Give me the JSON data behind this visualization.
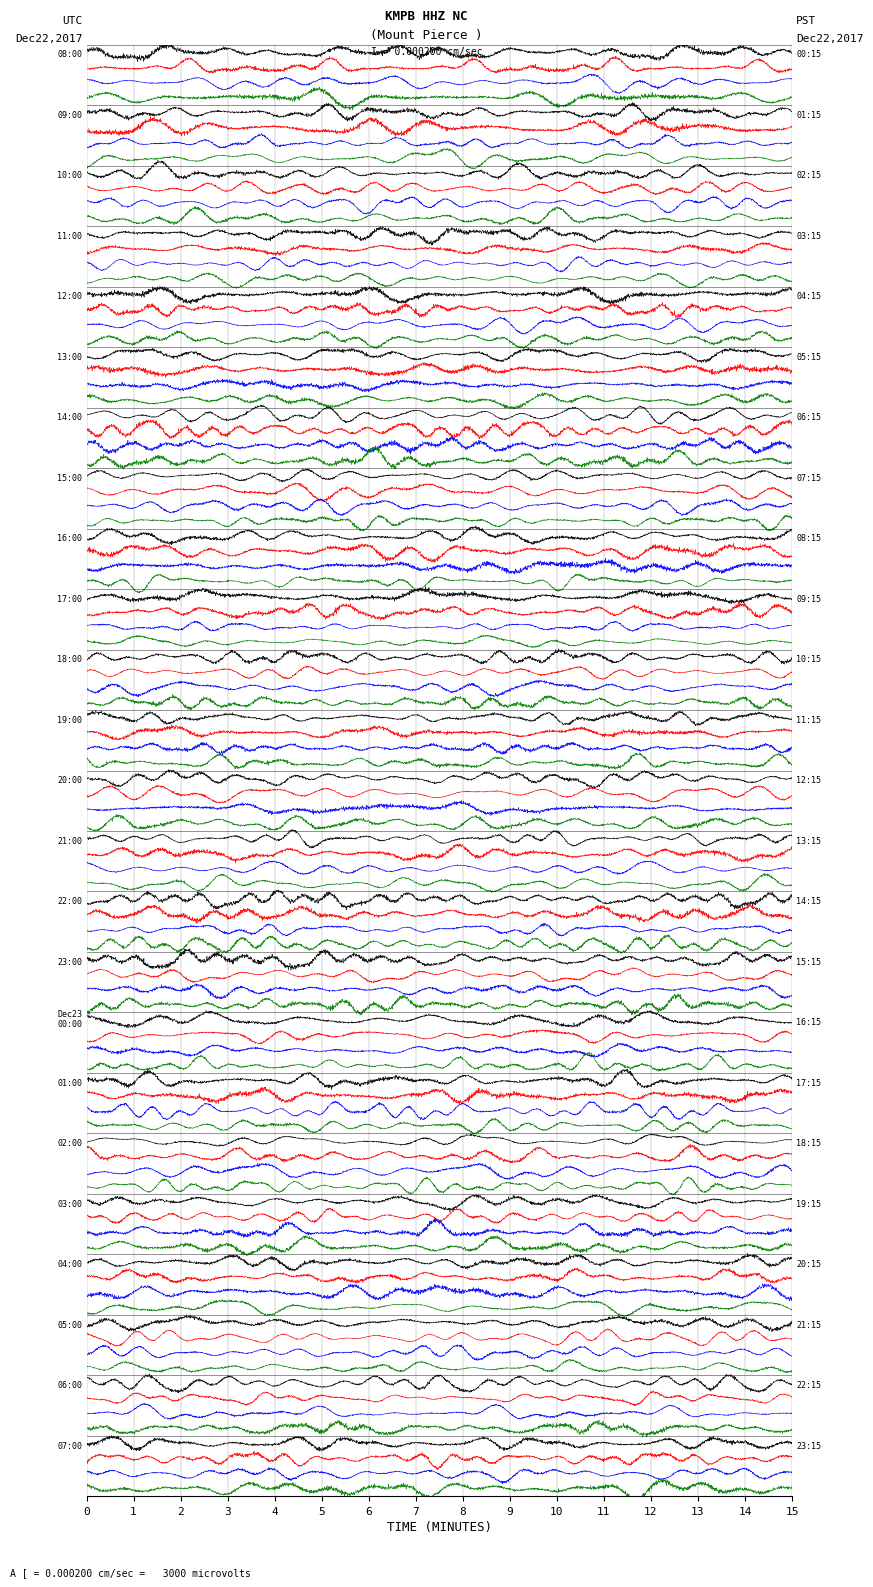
{
  "title_line1": "KMPB HHZ NC",
  "title_line2": "(Mount Pierce )",
  "scale_label": "I = 0.000200 cm/sec",
  "left_header": "UTC",
  "left_date": "Dec22,2017",
  "right_header": "PST",
  "right_date": "Dec22,2017",
  "bottom_label": "TIME (MINUTES)",
  "bottom_note": "A [ = 0.000200 cm/sec =   3000 microvolts",
  "utc_times": [
    "08:00",
    "09:00",
    "10:00",
    "11:00",
    "12:00",
    "13:00",
    "14:00",
    "15:00",
    "16:00",
    "17:00",
    "18:00",
    "19:00",
    "20:00",
    "21:00",
    "22:00",
    "23:00",
    "Dec23|00:00",
    "01:00",
    "02:00",
    "03:00",
    "04:00",
    "05:00",
    "06:00",
    "07:00"
  ],
  "pst_times": [
    "00:15",
    "01:15",
    "02:15",
    "03:15",
    "04:15",
    "05:15",
    "06:15",
    "07:15",
    "08:15",
    "09:15",
    "10:15",
    "11:15",
    "12:15",
    "13:15",
    "14:15",
    "15:15",
    "16:15",
    "17:15",
    "18:15",
    "19:15",
    "20:15",
    "21:15",
    "22:15",
    "23:15"
  ],
  "n_rows": 24,
  "n_traces_per_row": 4,
  "trace_colors": [
    "black",
    "red",
    "blue",
    "green"
  ],
  "x_min": 0,
  "x_max": 15,
  "x_ticks": [
    0,
    1,
    2,
    3,
    4,
    5,
    6,
    7,
    8,
    9,
    10,
    11,
    12,
    13,
    14,
    15
  ],
  "fig_width": 8.5,
  "fig_height": 16.13,
  "background_color": "white",
  "seed": 42,
  "amplitude_base": 0.35,
  "amplitude_variation": 0.15,
  "samples_per_trace": 3000,
  "freq_base": 8.0
}
